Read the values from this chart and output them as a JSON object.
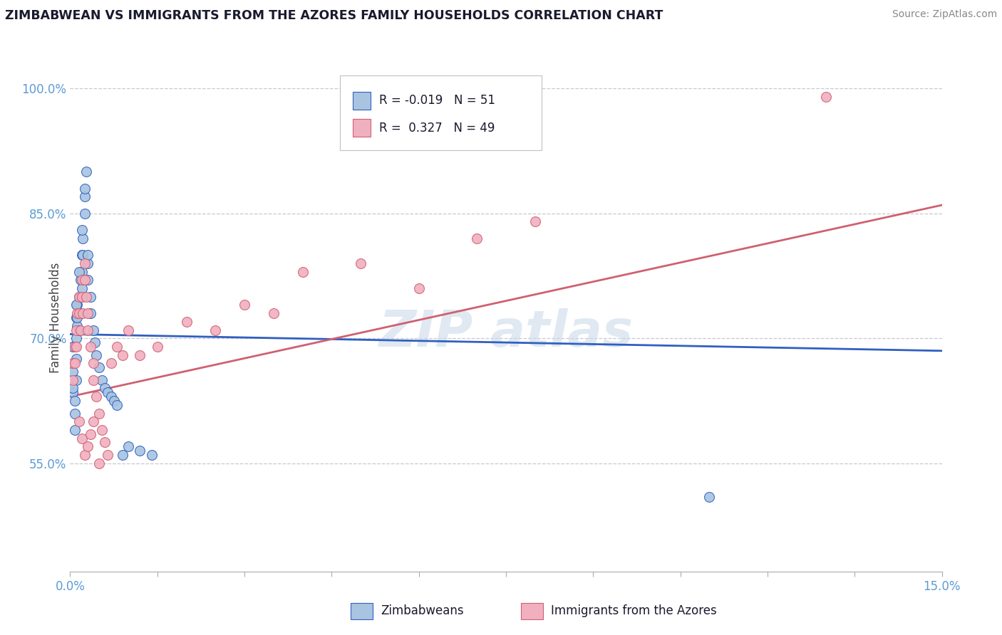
{
  "title": "ZIMBABWEAN VS IMMIGRANTS FROM THE AZORES FAMILY HOUSEHOLDS CORRELATION CHART",
  "source": "Source: ZipAtlas.com",
  "ylabel": "Family Households",
  "ytick_vals": [
    55.0,
    70.0,
    85.0,
    100.0
  ],
  "xmin": 0.0,
  "xmax": 15.0,
  "ymin": 42.0,
  "ymax": 103.0,
  "legend_r_blue": "-0.019",
  "legend_n_blue": "51",
  "legend_r_pink": "0.327",
  "legend_n_pink": "49",
  "blue_scatter_color": "#a8c4e0",
  "pink_scatter_color": "#f0b0c0",
  "blue_line_color": "#3060c0",
  "pink_line_color": "#d06070",
  "blue_line_x": [
    0.0,
    15.0
  ],
  "blue_line_y": [
    70.5,
    68.5
  ],
  "pink_line_x": [
    0.0,
    15.0
  ],
  "pink_line_y": [
    63.0,
    86.0
  ],
  "zimbabwe_x": [
    0.05,
    0.05,
    0.05,
    0.08,
    0.08,
    0.1,
    0.1,
    0.1,
    0.1,
    0.12,
    0.12,
    0.15,
    0.15,
    0.15,
    0.18,
    0.18,
    0.2,
    0.2,
    0.2,
    0.22,
    0.22,
    0.25,
    0.25,
    0.28,
    0.3,
    0.3,
    0.35,
    0.35,
    0.4,
    0.42,
    0.45,
    0.5,
    0.55,
    0.6,
    0.65,
    0.7,
    0.75,
    0.8,
    0.9,
    1.0,
    1.2,
    1.4,
    0.05,
    0.08,
    0.1,
    0.12,
    0.15,
    0.2,
    0.25,
    0.3,
    11.0
  ],
  "zimbabwe_y": [
    69.0,
    66.0,
    63.5,
    61.0,
    59.0,
    72.5,
    70.0,
    67.5,
    65.0,
    74.0,
    71.5,
    75.0,
    73.0,
    71.0,
    77.0,
    75.0,
    80.0,
    78.0,
    76.0,
    82.0,
    80.0,
    87.0,
    85.0,
    90.0,
    79.0,
    77.0,
    75.0,
    73.0,
    71.0,
    69.5,
    68.0,
    66.5,
    65.0,
    64.0,
    63.5,
    63.0,
    62.5,
    62.0,
    56.0,
    57.0,
    56.5,
    56.0,
    64.0,
    62.5,
    74.0,
    72.5,
    78.0,
    83.0,
    88.0,
    80.0,
    51.0
  ],
  "azores_x": [
    0.05,
    0.05,
    0.08,
    0.08,
    0.1,
    0.1,
    0.12,
    0.15,
    0.15,
    0.18,
    0.2,
    0.2,
    0.22,
    0.25,
    0.25,
    0.28,
    0.3,
    0.3,
    0.35,
    0.4,
    0.4,
    0.45,
    0.5,
    0.55,
    0.6,
    0.65,
    0.7,
    0.8,
    0.9,
    1.0,
    1.2,
    1.5,
    2.0,
    2.5,
    3.0,
    3.5,
    4.0,
    5.0,
    6.0,
    7.0,
    8.0,
    0.15,
    0.2,
    0.25,
    0.3,
    0.35,
    0.4,
    0.5,
    13.0
  ],
  "azores_y": [
    67.0,
    65.0,
    69.0,
    67.0,
    71.0,
    69.0,
    73.0,
    75.0,
    73.0,
    71.0,
    77.0,
    75.0,
    73.0,
    79.0,
    77.0,
    75.0,
    73.0,
    71.0,
    69.0,
    67.0,
    65.0,
    63.0,
    61.0,
    59.0,
    57.5,
    56.0,
    67.0,
    69.0,
    68.0,
    71.0,
    68.0,
    69.0,
    72.0,
    71.0,
    74.0,
    73.0,
    78.0,
    79.0,
    76.0,
    82.0,
    84.0,
    60.0,
    58.0,
    56.0,
    57.0,
    58.5,
    60.0,
    55.0,
    99.0
  ]
}
